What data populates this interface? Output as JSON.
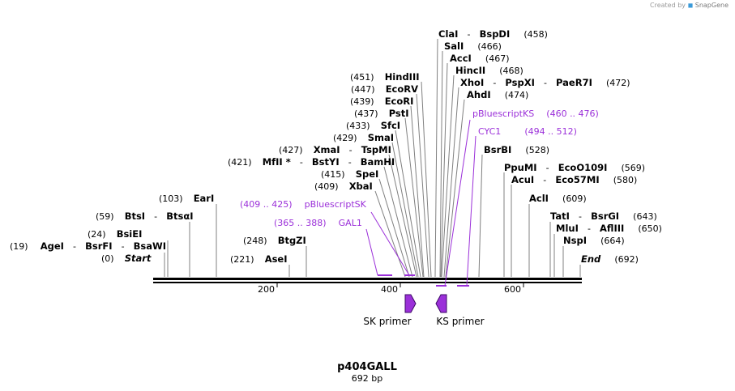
{
  "app": {
    "credit_prefix": "Created by",
    "credit_brand": "SnapGene"
  },
  "plasmid": {
    "name": "p404GALL",
    "length_label": "692 bp",
    "length": 692
  },
  "axis_ticks": [
    "200",
    "400",
    "600"
  ],
  "start_label": {
    "pos": "(0)",
    "name": "Start"
  },
  "end_label": {
    "pos": "(692)",
    "name": "End"
  },
  "sites_left": [
    {
      "pos": "(19)",
      "names": [
        "AgeI",
        "BsrFI",
        "BsaWI"
      ]
    },
    {
      "pos": "(24)",
      "names": [
        "BsiEI"
      ]
    },
    {
      "pos": "(59)",
      "names": [
        "BtsI",
        "BtsαI"
      ]
    },
    {
      "pos": "(103)",
      "names": [
        "EarI"
      ]
    },
    {
      "pos": "(221)",
      "names": [
        "AseI"
      ]
    },
    {
      "pos": "(248)",
      "names": [
        "BtgZI"
      ]
    },
    {
      "pos": "(409)",
      "names": [
        "XbaI"
      ]
    },
    {
      "pos": "(415)",
      "names": [
        "SpeI"
      ]
    },
    {
      "pos": "(421)",
      "names": [
        "MfII *",
        "BstYI",
        "BamHI"
      ]
    },
    {
      "pos": "(427)",
      "names": [
        "XmaI",
        "TspMI"
      ]
    },
    {
      "pos": "(429)",
      "names": [
        "SmaI"
      ]
    },
    {
      "pos": "(433)",
      "names": [
        "SfcI"
      ]
    },
    {
      "pos": "(437)",
      "names": [
        "PstI"
      ]
    },
    {
      "pos": "(439)",
      "names": [
        "EcoRI"
      ]
    },
    {
      "pos": "(447)",
      "names": [
        "EcoRV"
      ]
    },
    {
      "pos": "(451)",
      "names": [
        "HindIII"
      ]
    }
  ],
  "sites_right": [
    {
      "pos": "(458)",
      "names": [
        "ClaI",
        "BspDI"
      ]
    },
    {
      "pos": "(466)",
      "names": [
        "SalI"
      ]
    },
    {
      "pos": "(467)",
      "names": [
        "AccI"
      ]
    },
    {
      "pos": "(468)",
      "names": [
        "HincII"
      ]
    },
    {
      "pos": "(472)",
      "names": [
        "XhoI",
        "PspXI",
        "PaeR7I"
      ]
    },
    {
      "pos": "(474)",
      "names": [
        "AhdI"
      ]
    },
    {
      "pos": "(528)",
      "names": [
        "BsrBI"
      ]
    },
    {
      "pos": "(569)",
      "names": [
        "PpuMI",
        "EcoO109I"
      ]
    },
    {
      "pos": "(580)",
      "names": [
        "AcuI",
        "Eco57MI"
      ]
    },
    {
      "pos": "(609)",
      "names": [
        "AclI"
      ]
    },
    {
      "pos": "(643)",
      "names": [
        "TatI",
        "BsrGI"
      ]
    },
    {
      "pos": "(650)",
      "names": [
        "MluI",
        "AflIII"
      ]
    },
    {
      "pos": "(664)",
      "names": [
        "NspI"
      ]
    }
  ],
  "features": [
    {
      "range": "(409 .. 425)",
      "name": "pBluescriptSK",
      "start": 409,
      "end": 425
    },
    {
      "range": "(365 .. 388)",
      "name": "GAL1",
      "start": 365,
      "end": 388
    },
    {
      "range": "(460 .. 476)",
      "name": "pBluescriptKS",
      "start": 460,
      "end": 476
    },
    {
      "range": "(494 .. 512)",
      "name": "CYC1",
      "start": 494,
      "end": 512
    }
  ],
  "primers": [
    {
      "name": "SK primer",
      "direction": "forward",
      "start": 409,
      "end": 425
    },
    {
      "name": "KS primer",
      "direction": "reverse",
      "start": 460,
      "end": 476
    }
  ],
  "colors": {
    "feature": "#9b30d9",
    "primer_fill": "#9b30d9",
    "primer_stroke": "#3d0a66",
    "line": "#000000",
    "leader": "#808080"
  }
}
